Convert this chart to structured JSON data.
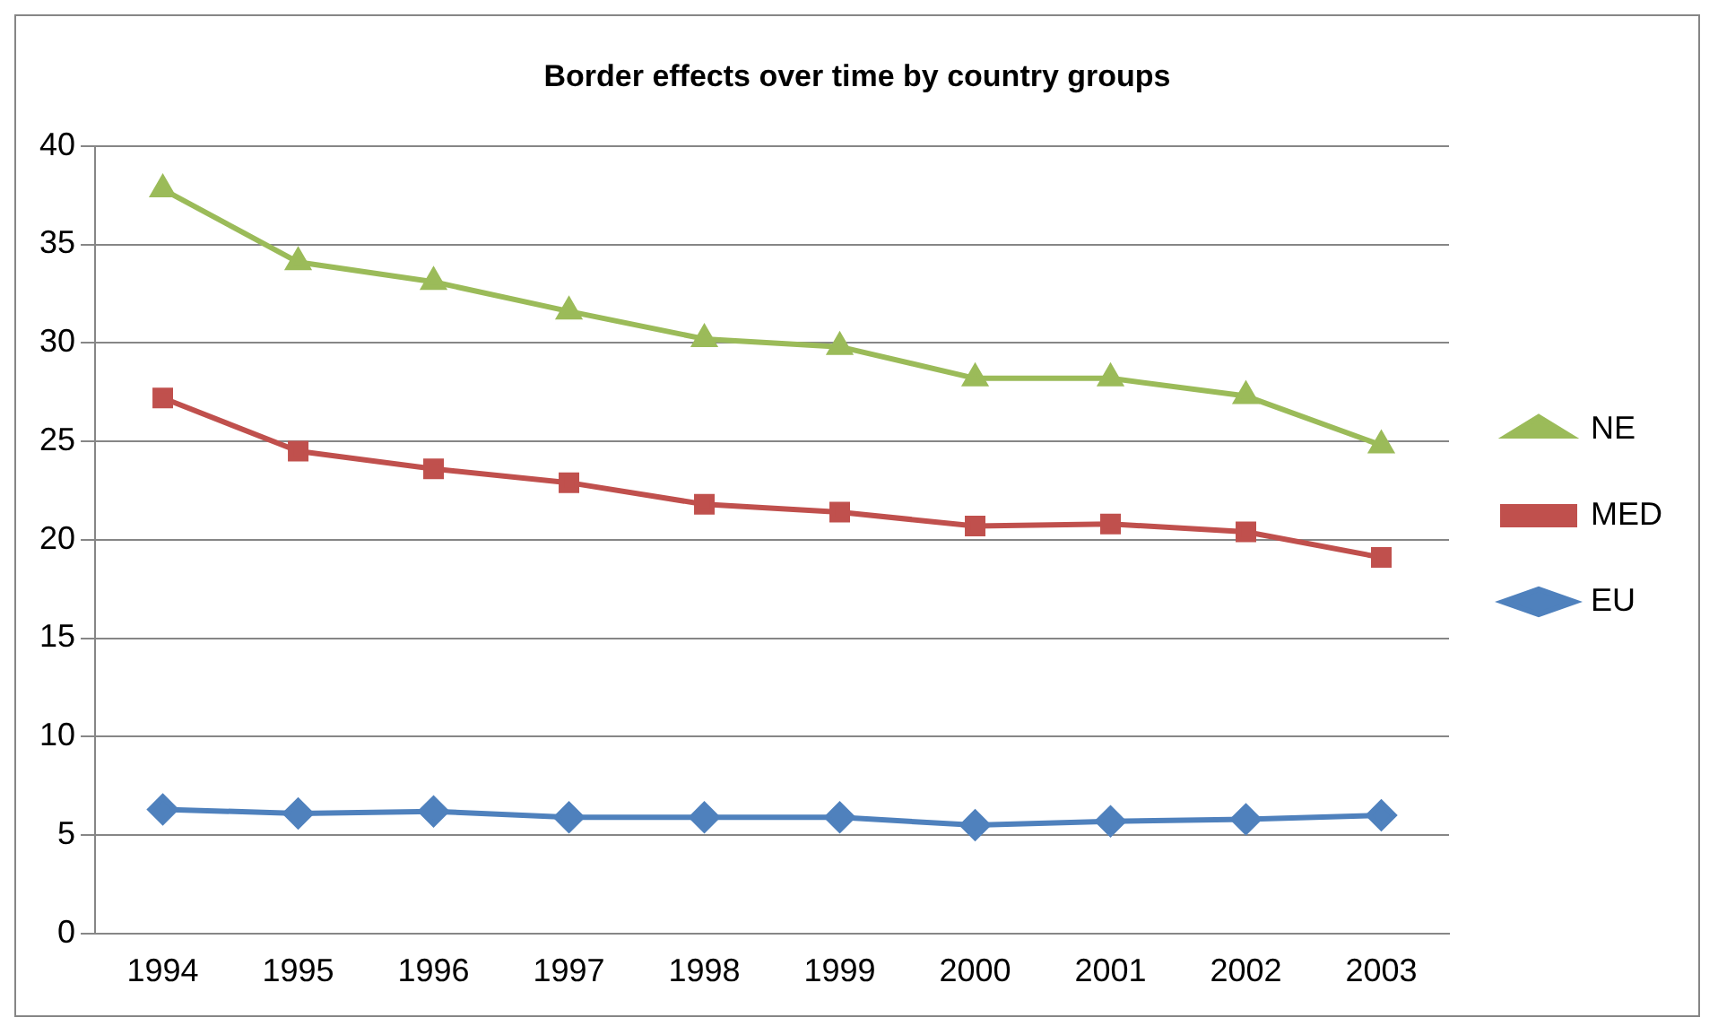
{
  "chart_data": {
    "type": "line",
    "title": "Border effects over time by country groups",
    "categories": [
      "1994",
      "1995",
      "1996",
      "1997",
      "1998",
      "1999",
      "2000",
      "2001",
      "2002",
      "2003"
    ],
    "series": [
      {
        "name": "NE",
        "color": "#9bbb59",
        "marker": "triangle",
        "values": [
          37.8,
          34.1,
          33.1,
          31.6,
          30.2,
          29.8,
          28.2,
          28.2,
          27.3,
          24.8
        ]
      },
      {
        "name": "MED",
        "color": "#c0504d",
        "marker": "square",
        "values": [
          27.2,
          24.5,
          23.6,
          22.9,
          21.8,
          21.4,
          20.7,
          20.8,
          20.4,
          19.1
        ]
      },
      {
        "name": "EU",
        "color": "#4f81bd",
        "marker": "diamond",
        "values": [
          6.3,
          6.1,
          6.2,
          5.9,
          5.9,
          5.9,
          5.5,
          5.7,
          5.8,
          6.0
        ]
      }
    ],
    "ylim": [
      0,
      40
    ],
    "yticks": [
      0,
      5,
      10,
      15,
      20,
      25,
      30,
      35,
      40
    ],
    "grid": "y",
    "legend": "right"
  }
}
